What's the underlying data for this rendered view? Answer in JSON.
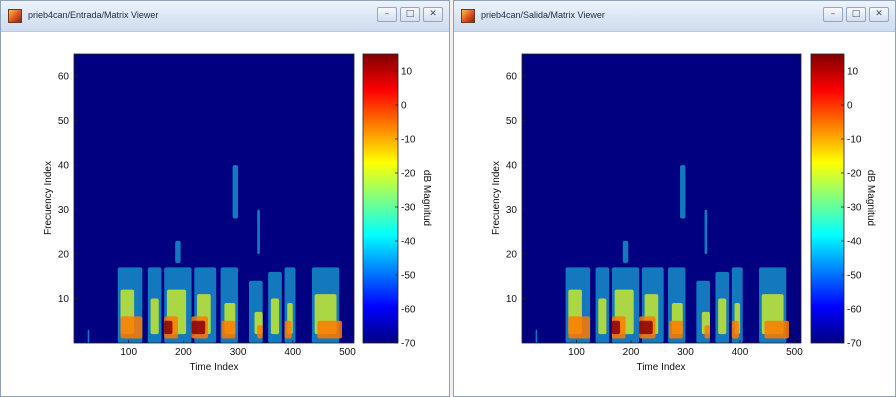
{
  "windows": [
    {
      "title": "prieb4can/Entrada/Matrix Viewer",
      "buttons": {
        "minimize": "–",
        "maximize": "□",
        "close": "✕"
      },
      "chart_data": {
        "type": "heatmap",
        "xlabel": "Time Index",
        "ylabel": "Frecuency Index",
        "colorbar_label": "dB Magnitud",
        "xlim": [
          0,
          512
        ],
        "ylim": [
          0,
          65
        ],
        "xticks": [
          "100",
          "200",
          "300",
          "400",
          "500"
        ],
        "yticks": [
          "10",
          "20",
          "30",
          "40",
          "50",
          "60"
        ],
        "cticks": [
          "10",
          "0",
          "-10",
          "-20",
          "-30",
          "-40",
          "-50",
          "-60",
          "-70"
        ],
        "clim": [
          -70,
          15
        ],
        "colormap": "jet"
      }
    },
    {
      "title": "prieb4can/Salida/Matrix Viewer",
      "buttons": {
        "minimize": "–",
        "maximize": "□",
        "close": "✕"
      },
      "chart_data": {
        "type": "heatmap",
        "xlabel": "Time Index",
        "ylabel": "Frecuency Index",
        "colorbar_label": "dB Magnitud",
        "xlim": [
          0,
          512
        ],
        "ylim": [
          0,
          65
        ],
        "xticks": [
          "100",
          "200",
          "300",
          "400",
          "500"
        ],
        "yticks": [
          "10",
          "20",
          "30",
          "40",
          "50",
          "60"
        ],
        "cticks": [
          "10",
          "0",
          "-10",
          "-20",
          "-30",
          "-40",
          "-50",
          "-60",
          "-70"
        ],
        "clim": [
          -70,
          15
        ],
        "colormap": "jet"
      }
    }
  ],
  "colors": {
    "background": "#000080",
    "low": "#00008f",
    "high": "#800000"
  },
  "icons": {
    "app": "matlab-icon",
    "minimize": "minimize-icon",
    "maximize": "maximize-icon",
    "close": "close-icon"
  }
}
